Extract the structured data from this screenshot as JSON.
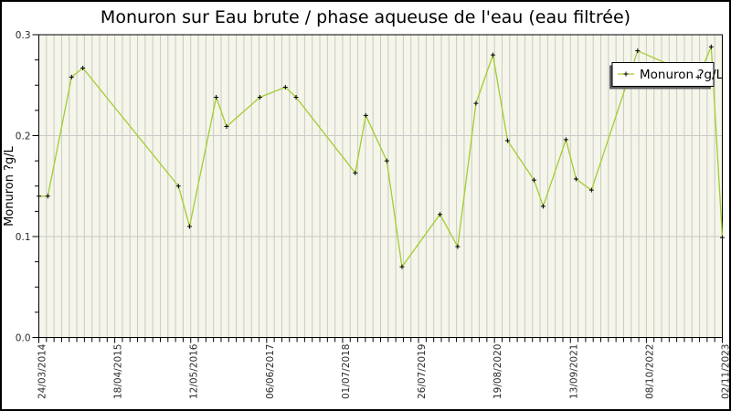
{
  "title": "Monuron sur Eau brute / phase aqueuse de l'eau (eau filtrée)",
  "y_axis": {
    "label": "Monuron ?g/L",
    "tick_labels": [
      "0.0",
      "0.1",
      "0.2",
      "0.3"
    ]
  },
  "x_axis": {
    "tick_labels": [
      "24/03/2014",
      "18/04/2015",
      "12/05/2016",
      "06/06/2017",
      "01/07/2018",
      "26/07/2019",
      "19/08/2020",
      "13/09/2021",
      "08/10/2022",
      "02/11/2023"
    ]
  },
  "legend": {
    "label": "Monuron ?g/L"
  },
  "colors": {
    "line": "#a2cd32",
    "marker": "#000000",
    "plot_background": "#f5f5e9",
    "gridline": "#c9c9c9",
    "frame": "#000000",
    "legend_shadow": "#5f5f5f",
    "legend_fill": "#ffffff"
  },
  "chart_data": {
    "type": "line",
    "title": "Monuron sur Eau brute / phase aqueuse de l'eau (eau filtrée)",
    "xlabel": "",
    "ylabel": "Monuron ?g/L",
    "ylim": [
      0.0,
      0.3
    ],
    "y_major_tick_interval": 0.1,
    "y_minor_tick_interval": 0.025,
    "x_range": [
      "24/03/2014",
      "02/11/2023"
    ],
    "x_tick_labels": [
      "24/03/2014",
      "18/04/2015",
      "12/05/2016",
      "06/06/2017",
      "01/07/2018",
      "26/07/2019",
      "19/08/2020",
      "13/09/2021",
      "08/10/2022",
      "02/11/2023"
    ],
    "x_minor_divisions_per_major": 10,
    "grid": {
      "vertical_minor_gridlines": true,
      "horizontal_major_gridlines": true
    },
    "legend_position": "top-right",
    "marker_style": "plus",
    "series": [
      {
        "name": "Monuron ?g/L",
        "points": [
          {
            "date": "24/03/2014",
            "value": 0.14
          },
          {
            "date": "09/05/2014",
            "value": 0.14
          },
          {
            "date": "08/09/2014",
            "value": 0.258
          },
          {
            "date": "05/11/2014",
            "value": 0.267
          },
          {
            "date": "10/03/2016",
            "value": 0.15
          },
          {
            "date": "06/05/2016",
            "value": 0.11
          },
          {
            "date": "20/09/2016",
            "value": 0.238
          },
          {
            "date": "12/11/2016",
            "value": 0.209
          },
          {
            "date": "02/05/2017",
            "value": 0.238
          },
          {
            "date": "10/09/2017",
            "value": 0.248
          },
          {
            "date": "04/11/2017",
            "value": 0.238
          },
          {
            "date": "04/09/2018",
            "value": 0.163
          },
          {
            "date": "28/10/2018",
            "value": 0.22
          },
          {
            "date": "13/02/2019",
            "value": 0.175
          },
          {
            "date": "02/05/2019",
            "value": 0.07
          },
          {
            "date": "13/11/2019",
            "value": 0.122
          },
          {
            "date": "12/02/2020",
            "value": 0.09
          },
          {
            "date": "16/05/2020",
            "value": 0.232
          },
          {
            "date": "11/08/2020",
            "value": 0.28
          },
          {
            "date": "25/10/2020",
            "value": 0.195
          },
          {
            "date": "10/03/2021",
            "value": 0.156
          },
          {
            "date": "26/04/2021",
            "value": 0.13
          },
          {
            "date": "21/08/2021",
            "value": 0.196
          },
          {
            "date": "12/10/2021",
            "value": 0.157
          },
          {
            "date": "30/12/2021",
            "value": 0.146
          },
          {
            "date": "24/08/2022",
            "value": 0.284
          },
          {
            "date": "01/07/2023",
            "value": 0.258
          },
          {
            "date": "06/09/2023",
            "value": 0.288
          },
          {
            "date": "02/11/2023",
            "value": 0.099
          }
        ]
      }
    ]
  }
}
